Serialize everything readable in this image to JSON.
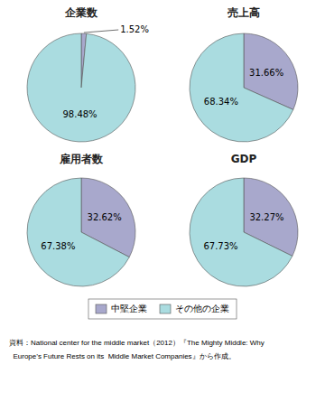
{
  "chart_data": [
    {
      "type": "pie",
      "title": "企業数",
      "categories": [
        "中堅企業",
        "その他の企業"
      ],
      "values": [
        1.52,
        98.48
      ],
      "value_labels": [
        "1.52%",
        "98.48%"
      ],
      "colors": [
        "#a8a8cc",
        "#aadce0"
      ],
      "data_labels": true,
      "legend": "bottom",
      "annotations": [
        "資料：National center for the middle market（2012）『The Mighty Middle: Why",
        "  Europe’s Future Rests on its  Middle Market Companies』から作成。"
      ]
    },
    {
      "type": "pie",
      "title": "売上高",
      "values": [
        31.66,
        68.34
      ],
      "value_labels": [
        "31.66%",
        "68.34%"
      ],
      "colors": [
        "#a8a8cc",
        "#aadce0"
      ],
      "data_labels": true
    },
    {
      "type": "pie",
      "title": "雇用者数",
      "values": [
        32.62,
        67.38
      ],
      "value_labels": [
        "32.62%",
        "67.38%"
      ],
      "colors": [
        "#a8a8cc",
        "#aadce0"
      ],
      "data_labels": true
    },
    {
      "type": "pie",
      "title": "GDP",
      "values": [
        32.27,
        67.73
      ],
      "value_labels": [
        "32.27%",
        "67.73%"
      ],
      "colors": [
        "#a8a8cc",
        "#aadce0"
      ],
      "data_labels": true
    }
  ]
}
